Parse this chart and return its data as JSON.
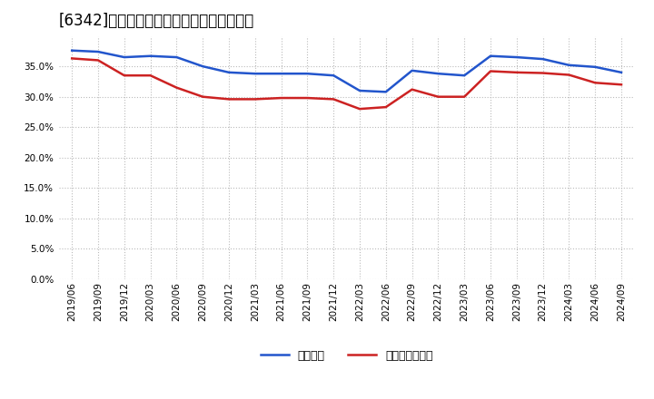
{
  "title": "[6342]　固定比率、固定長期適合率の推移",
  "x_labels": [
    "2019/06",
    "2019/09",
    "2019/12",
    "2020/03",
    "2020/06",
    "2020/09",
    "2020/12",
    "2021/03",
    "2021/06",
    "2021/09",
    "2021/12",
    "2022/03",
    "2022/06",
    "2022/09",
    "2022/12",
    "2023/03",
    "2023/06",
    "2023/09",
    "2023/12",
    "2024/03",
    "2024/06",
    "2024/09"
  ],
  "fixed_ratio": [
    0.376,
    0.374,
    0.365,
    0.367,
    0.365,
    0.35,
    0.34,
    0.338,
    0.338,
    0.338,
    0.335,
    0.31,
    0.308,
    0.343,
    0.338,
    0.335,
    0.367,
    0.365,
    0.362,
    0.352,
    0.349,
    0.34
  ],
  "fixed_long_ratio": [
    0.363,
    0.36,
    0.335,
    0.335,
    0.315,
    0.3,
    0.296,
    0.296,
    0.298,
    0.298,
    0.296,
    0.28,
    0.283,
    0.312,
    0.3,
    0.3,
    0.342,
    0.34,
    0.339,
    0.336,
    0.323,
    0.32
  ],
  "line_color_blue": "#2255cc",
  "line_color_red": "#cc2222",
  "background_color": "#ffffff",
  "plot_bg_color": "#ffffff",
  "grid_color": "#bbbbbb",
  "ylim": [
    0.0,
    0.4
  ],
  "yticks": [
    0.0,
    0.05,
    0.1,
    0.15,
    0.2,
    0.25,
    0.3,
    0.35
  ],
  "legend_blue": "固定比率",
  "legend_red": "固定長期適合率",
  "title_fontsize": 12,
  "axis_fontsize": 7.5,
  "legend_fontsize": 9
}
